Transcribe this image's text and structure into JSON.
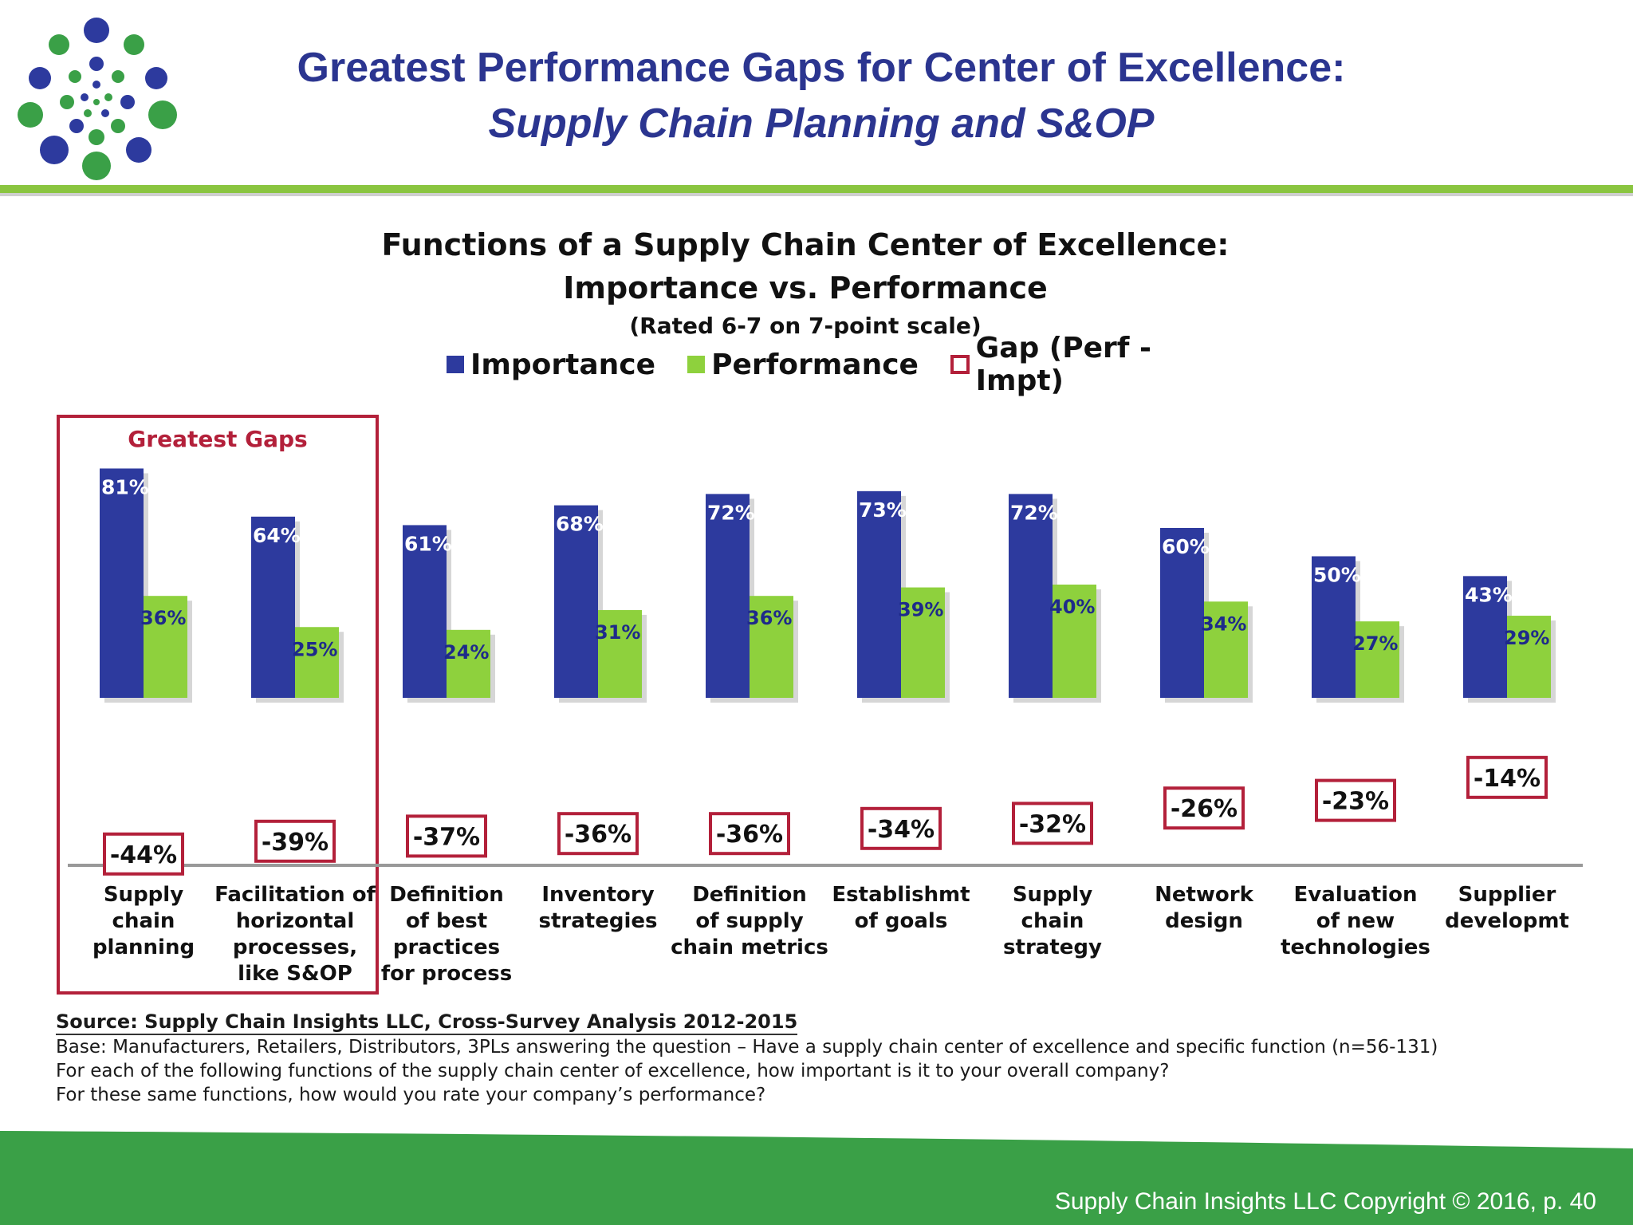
{
  "slide": {
    "title_line1": "Greatest Performance Gaps for Center of Excellence:",
    "title_line2": "Supply Chain Planning and S&OP",
    "footer": "Supply Chain Insights LLC Copyright © 2016, p. 40"
  },
  "colors": {
    "title": "#2b3590",
    "importance": "#2d3a9e",
    "performance": "#8ed13d",
    "gap_border": "#b3203a",
    "accent_green": "#8ac540"
  },
  "chart_data": {
    "type": "bar",
    "title": "Functions of a Supply Chain Center of Excellence:",
    "subtitle": "Importance vs. Performance",
    "note": "(Rated 6-7 on 7-point scale)",
    "legend": [
      "Importance",
      "Performance",
      "Gap (Perf - Impt)"
    ],
    "highlight_label": "Greatest Gaps",
    "highlight_count": 2,
    "categories": [
      [
        "Supply",
        "chain",
        "planning"
      ],
      [
        "Facilitation of",
        "horizontal",
        "processes,",
        "like S&OP"
      ],
      [
        "Definition",
        "of best",
        "practices",
        "for process"
      ],
      [
        "Inventory",
        "strategies"
      ],
      [
        "Definition",
        "of supply",
        "chain metrics"
      ],
      [
        "Establishmt",
        "of goals"
      ],
      [
        "Supply",
        "chain",
        "strategy"
      ],
      [
        "Network",
        "design"
      ],
      [
        "Evaluation",
        "of new",
        "technologies"
      ],
      [
        "Supplier",
        "developmt"
      ]
    ],
    "series": [
      {
        "name": "Importance",
        "values": [
          81,
          64,
          61,
          68,
          72,
          73,
          72,
          60,
          50,
          43
        ]
      },
      {
        "name": "Performance",
        "values": [
          36,
          25,
          24,
          31,
          36,
          39,
          40,
          34,
          27,
          29
        ]
      },
      {
        "name": "Gap (Perf - Impt)",
        "values": [
          -44,
          -39,
          -37,
          -36,
          -36,
          -34,
          -32,
          -26,
          -23,
          -14
        ]
      }
    ],
    "unit": "%"
  },
  "source": {
    "line1": "Source:  Supply Chain Insights LLC, Cross-Survey Analysis 2012-2015",
    "line2": "Base:  Manufacturers,  Retailers, Distributors, 3PLs answering the question – Have a supply chain center of excellence and specific function (n=56-131)",
    "line3": "For each of the following functions of the supply chain center of excellence, how important is it to your overall company?",
    "line4": "For these same functions, how would you rate your company’s performance?"
  }
}
